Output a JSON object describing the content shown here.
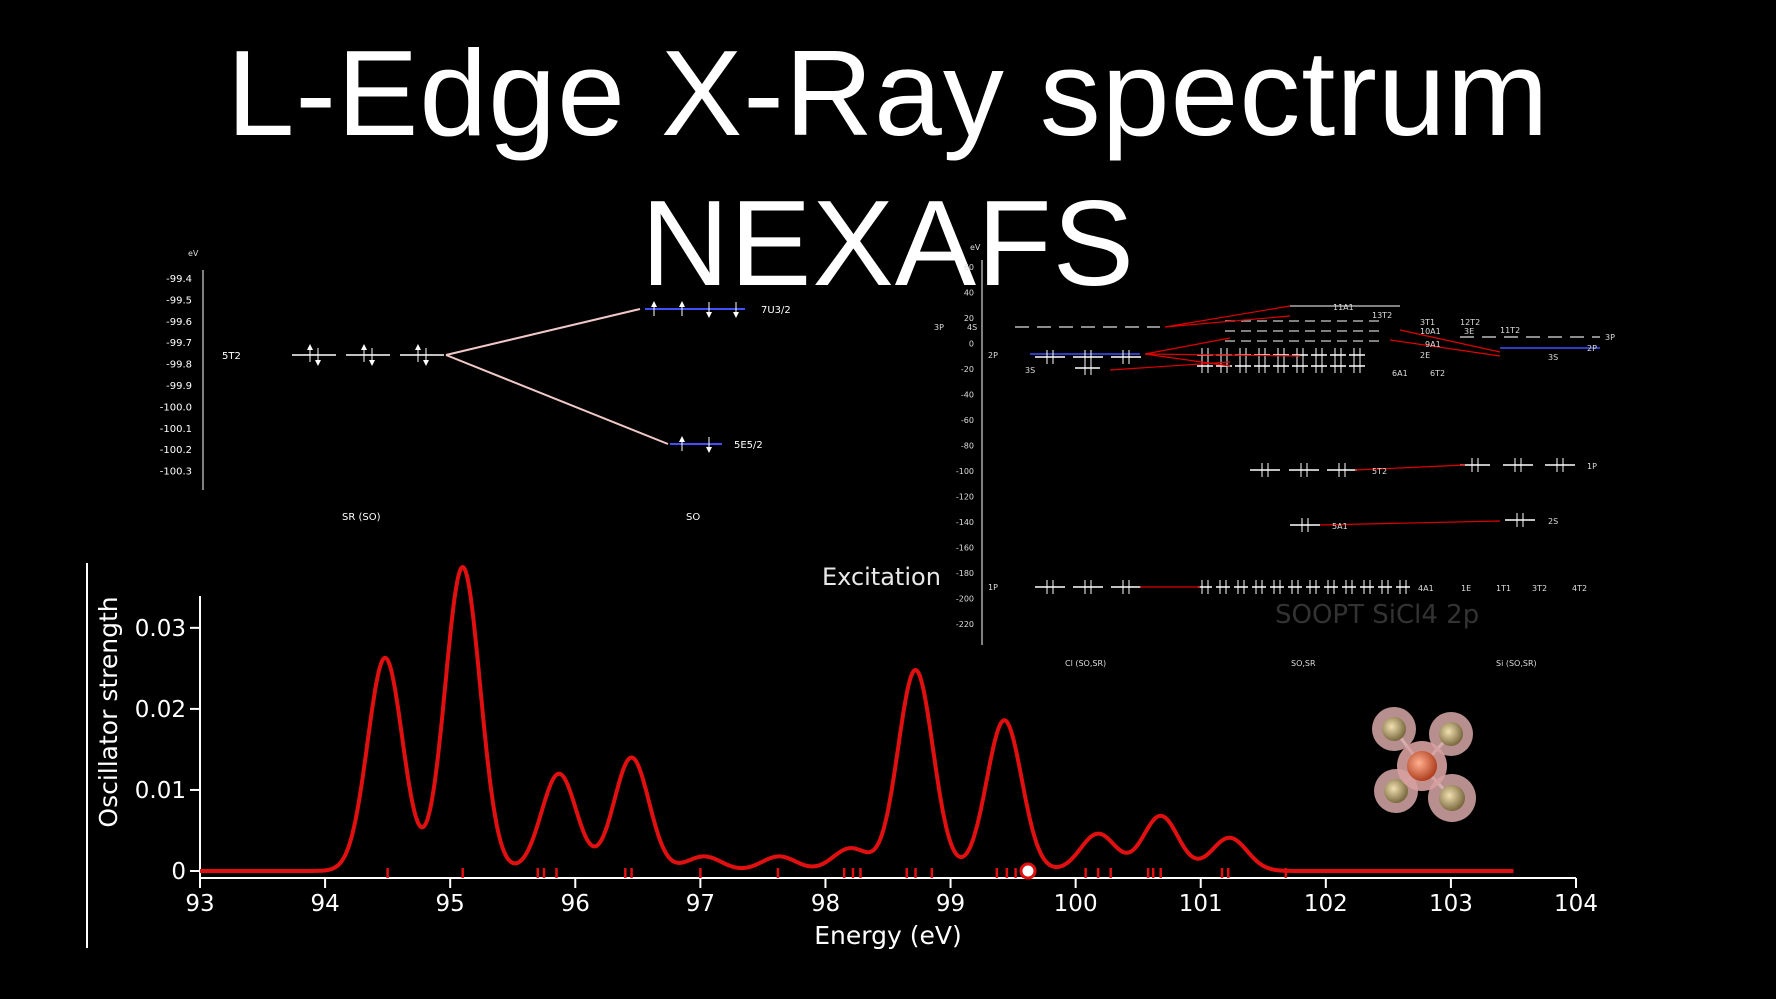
{
  "title": "L-Edge X-Ray spectrum NEXAFS",
  "excitation_label": "Excitation",
  "colors": {
    "background": "#000000",
    "spectrum": "#e01010",
    "stick": "#e01010",
    "text": "#ffffff",
    "level_blue": "#4050ff",
    "connector": "#f0c8c8",
    "mo_red": "#e00000"
  },
  "chart_data": [
    {
      "type": "line",
      "title": "",
      "xlabel": "Energy (eV)",
      "ylabel": "Oscillator strength",
      "xlim": [
        93,
        104
      ],
      "ylim": [
        0,
        0.038
      ],
      "x_ticks": [
        "93",
        "94",
        "95",
        "96",
        "97",
        "98",
        "99",
        "100",
        "101",
        "102",
        "103",
        "104"
      ],
      "y_ticks": [
        "0",
        "0.01",
        "0.02",
        "0.03"
      ],
      "grid": false,
      "series": [
        {
          "kind": "spectrum",
          "x_range": [
            93,
            103.5
          ],
          "peaks": [
            {
              "x": 94.48,
              "y": 0.0263
            },
            {
              "x": 95.1,
              "y": 0.0375
            },
            {
              "x": 95.87,
              "y": 0.012
            },
            {
              "x": 96.45,
              "y": 0.014
            },
            {
              "x": 97.03,
              "y": 0.0018
            },
            {
              "x": 97.63,
              "y": 0.0018
            },
            {
              "x": 98.2,
              "y": 0.0028
            },
            {
              "x": 98.72,
              "y": 0.0248
            },
            {
              "x": 99.43,
              "y": 0.0186
            },
            {
              "x": 100.18,
              "y": 0.0046
            },
            {
              "x": 100.68,
              "y": 0.0068
            },
            {
              "x": 101.23,
              "y": 0.0041
            }
          ]
        },
        {
          "kind": "sticks",
          "x": [
            94.5,
            95.1,
            95.7,
            95.75,
            95.85,
            96.4,
            96.45,
            97.0,
            97.62,
            98.15,
            98.22,
            98.28,
            98.65,
            98.72,
            98.85,
            99.37,
            99.45,
            99.52,
            99.58,
            100.08,
            100.18,
            100.28,
            100.58,
            100.62,
            100.68,
            101.17,
            101.22,
            101.68
          ]
        }
      ]
    },
    {
      "type": "diagram",
      "ylabel": "eV",
      "y_ticks": [
        "-99.4",
        "-99.5",
        "-99.6",
        "-99.7",
        "-99.8",
        "-99.9",
        "-100.0",
        "-100.1",
        "-100.2",
        "-100.3"
      ],
      "column_labels": [
        "SR (SO)",
        "SO"
      ],
      "left_level": {
        "label": "5T2",
        "energy": -99.74
      },
      "right_levels": [
        {
          "label": "7U3/2",
          "energy": -99.53
        },
        {
          "label": "5E5/2",
          "energy": -100.15
        }
      ]
    },
    {
      "type": "diagram",
      "ylabel": "eV",
      "y_ticks": [
        "60",
        "40",
        "20",
        "0",
        "-20",
        "-40",
        "-60",
        "-80",
        "-100",
        "-120",
        "-140",
        "-160",
        "-180",
        "-200",
        "-220"
      ],
      "column_labels": [
        "Cl (SO,SR)",
        "SO,SR",
        "Si (SO,SR)"
      ],
      "left_labels": [
        "3P",
        "4S",
        "2P",
        "3S",
        "1P"
      ],
      "mid_labels": [
        "11A1",
        "13T2",
        "3T1",
        "12T2",
        "11T2",
        "10A1",
        "3E",
        "9A1",
        "2E",
        "6A1",
        "6T2",
        "5T2",
        "5A1",
        "4A1",
        "1E",
        "1T1",
        "3T2",
        "4T2"
      ],
      "right_labels": [
        "3P",
        "2P",
        "3S",
        "2S",
        "1P"
      ],
      "overlay_text": "SOOPT SiCl4 2p"
    }
  ]
}
